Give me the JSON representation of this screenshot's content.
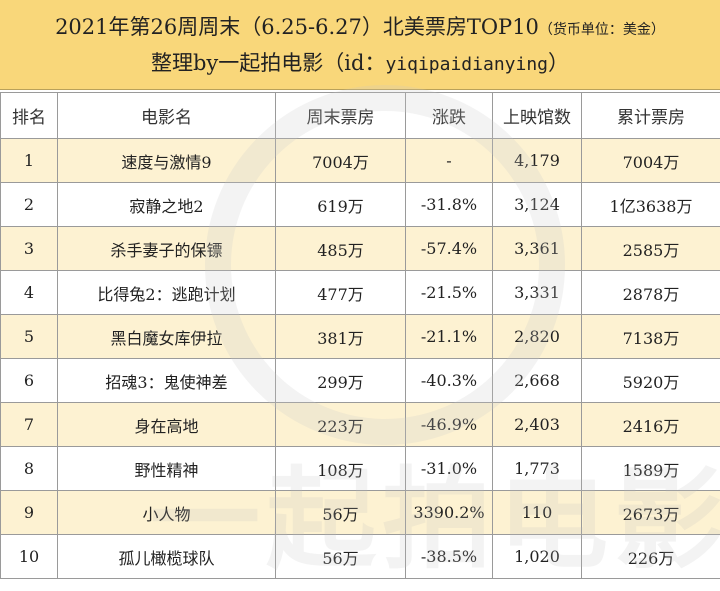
{
  "header": {
    "title_main": "2021年第26周周末（6.25-6.27）北美票房TOP10",
    "title_unit": "（货币单位：美金）",
    "subtitle_main": "整理by一起拍电影（id：",
    "subtitle_id": "yiqipaidianying",
    "subtitle_end": "）"
  },
  "watermark": {
    "text": "一起拍电影"
  },
  "columns": [
    "排名",
    "电影名",
    "周末票房",
    "涨跌",
    "上映馆数",
    "累计票房"
  ],
  "rows": [
    {
      "rank": "1",
      "title": "速度与激情9",
      "weekend": "7004万",
      "change": "-",
      "theaters": "4,179",
      "total": "7004万"
    },
    {
      "rank": "2",
      "title": "寂静之地2",
      "weekend": "619万",
      "change": "-31.8%",
      "theaters": "3,124",
      "total": "1亿3638万"
    },
    {
      "rank": "3",
      "title": "杀手妻子的保镖",
      "weekend": "485万",
      "change": "-57.4%",
      "theaters": "3,361",
      "total": "2585万"
    },
    {
      "rank": "4",
      "title": "比得兔2：逃跑计划",
      "weekend": "477万",
      "change": "-21.5%",
      "theaters": "3,331",
      "total": "2878万"
    },
    {
      "rank": "5",
      "title": "黑白魔女库伊拉",
      "weekend": "381万",
      "change": "-21.1%",
      "theaters": "2,820",
      "total": "7138万"
    },
    {
      "rank": "6",
      "title": "招魂3：鬼使神差",
      "weekend": "299万",
      "change": "-40.3%",
      "theaters": "2,668",
      "total": "5920万"
    },
    {
      "rank": "7",
      "title": "身在高地",
      "weekend": "223万",
      "change": "-46.9%",
      "theaters": "2,403",
      "total": "2416万"
    },
    {
      "rank": "8",
      "title": "野性精神",
      "weekend": "108万",
      "change": "-31.0%",
      "theaters": "1,773",
      "total": "1589万"
    },
    {
      "rank": "9",
      "title": "小人物",
      "weekend": "56万",
      "change": "3390.2%",
      "theaters": "110",
      "total": "2673万"
    },
    {
      "rank": "10",
      "title": "孤儿橄榄球队",
      "weekend": "56万",
      "change": "-38.5%",
      "theaters": "1,020",
      "total": "226万"
    }
  ],
  "colors": {
    "header_bg": "#f9d77a",
    "odd_row_bg": "#fdf2d2",
    "even_row_bg": "#ffffff",
    "change_down": "#d9534f",
    "change_up": "#3aaeb7"
  }
}
